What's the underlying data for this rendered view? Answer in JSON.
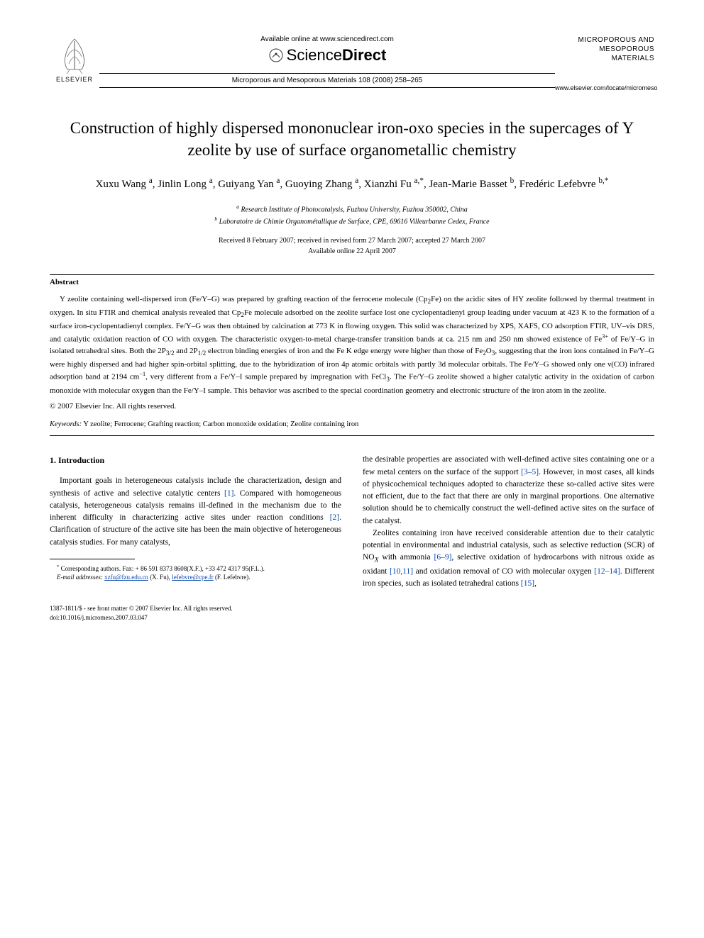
{
  "header": {
    "elsevier_label": "ELSEVIER",
    "available_online": "Available online at www.sciencedirect.com",
    "sciencedirect_prefix": "Science",
    "sciencedirect_suffix": "Direct",
    "journal_ref": "Microporous and Mesoporous Materials 108 (2008) 258–265",
    "journal_name_line1": "MICROPOROUS AND",
    "journal_name_line2": "MESOPOROUS MATERIALS",
    "journal_url": "www.elsevier.com/locate/micromeso"
  },
  "article": {
    "title": "Construction of highly dispersed mononuclear iron-oxo species in the supercages of Y zeolite by use of surface organometallic chemistry",
    "authors_html": "Xuxu Wang <sup>a</sup>, Jinlin Long <sup>a</sup>, Guiyang Yan <sup>a</sup>, Guoying Zhang <sup>a</sup>, Xianzhi Fu <sup>a,*</sup>, Jean-Marie Basset <sup>b</sup>, Fredéric Lefebvre <sup>b,*</sup>",
    "affiliation_a": "Research Institute of Photocatalysis, Fuzhou University, Fuzhou 350002, China",
    "affiliation_b": "Laboratoire de Chimie Organométallique de Surface, CPE, 69616 Villeurbanne Cedex, France",
    "dates_line1": "Received 8 February 2007; received in revised form 27 March 2007; accepted 27 March 2007",
    "dates_line2": "Available online 22 April 2007"
  },
  "abstract": {
    "heading": "Abstract",
    "text_html": "Y zeolite containing well-dispersed iron (Fe/Y–G) was prepared by grafting reaction of the ferrocene molecule (Cp<sub>2</sub>Fe) on the acidic sites of HY zeolite followed by thermal treatment in oxygen. In situ FTIR and chemical analysis revealed that Cp<sub>2</sub>Fe molecule adsorbed on the zeolite surface lost one cyclopentadienyl group leading under vacuum at 423 K to the formation of a surface iron-cyclopentadienyl complex. Fe/Y–G was then obtained by calcination at 773 K in flowing oxygen. This solid was characterized by XPS, XAFS, CO adsorption FTIR, UV–vis DRS, and catalytic oxidation reaction of CO with oxygen. The characteristic oxygen-to-metal charge-transfer transition bands at ca. 215 nm and 250 nm showed existence of Fe<sup>3+</sup> of Fe/Y–G in isolated tetrahedral sites. Both the 2P<sub>3/2</sub> and 2P<sub>1/2</sub> electron binding energies of iron and the Fe K edge energy were higher than those of Fe<sub>2</sub>O<sub>3</sub>, suggesting that the iron ions contained in Fe/Y–G were highly dispersed and had higher spin-orbital splitting, due to the hybridization of iron 4p atomic orbitals with partly 3d molecular orbitals. The Fe/Y–G showed only one ν(CO) infrared adsorption band at 2194 cm<sup>−1</sup>, very different from a Fe/Y–I sample prepared by impregnation with FeCl<sub>3</sub>. The Fe/Y–G zeolite showed a higher catalytic activity in the oxidation of carbon monoxide with molecular oxygen than the Fe/Y–I sample. This behavior was ascribed to the special coordination geometry and electronic structure of the iron atom in the zeolite.",
    "copyright": "© 2007 Elsevier Inc. All rights reserved.",
    "keywords_label": "Keywords:",
    "keywords_text": " Y zeolite; Ferrocene; Grafting reaction; Carbon monoxide oxidation; Zeolite containing iron"
  },
  "body": {
    "section_heading": "1. Introduction",
    "col1_p1_html": "Important goals in heterogeneous catalysis include the characterization, design and synthesis of active and selective catalytic centers <span class=\"ref-link\">[1]</span>. Compared with homogeneous catalysis, heterogeneous catalysis remains ill-defined in the mechanism due to the inherent difficulty in characterizing active sites under reaction conditions <span class=\"ref-link\">[2]</span>. Clarification of structure of the active site has been the main objective of heterogeneous catalysis studies. For many catalysts,",
    "col2_p1_html": "the desirable properties are associated with well-defined active sites containing one or a few metal centers on the surface of the support <span class=\"ref-link\">[3–5]</span>. However, in most cases, all kinds of physicochemical techniques adopted to characterize these so-called active sites were not efficient, due to the fact that there are only in marginal proportions. One alternative solution should be to chemically construct the well-defined active sites on the surface of the catalyst.",
    "col2_p2_html": "Zeolites containing iron have received considerable attention due to their catalytic potential in environmental and industrial catalysis, such as selective reduction (SCR) of NO<sub><i>X</i></sub> with ammonia <span class=\"ref-link\">[6–9]</span>, selective oxidation of hydrocarbons with nitrous oxide as oxidant <span class=\"ref-link\">[10,11]</span> and oxidation removal of CO with molecular oxygen <span class=\"ref-link\">[12–14]</span>. Different iron species, such as isolated tetrahedral cations <span class=\"ref-link\">[15]</span>,"
  },
  "footnotes": {
    "corresponding_html": "<sup>*</sup> Corresponding authors. Fax: + 86 591 8373 8608(X.F.), +33 472 4317 95(F.L.).",
    "email_html": "<i>E-mail addresses:</i> <span class=\"email-link\">xzfu@fzu.edu.cn</span> (X. Fu), <span class=\"email-link\">lefebvre@cpe.fr</span> (F. Lefebvre)."
  },
  "footer": {
    "left_line1": "1387-1811/$ - see front matter © 2007 Elsevier Inc. All rights reserved.",
    "left_line2": "doi:10.1016/j.micromeso.2007.03.047"
  },
  "colors": {
    "text": "#000000",
    "link": "#0645ad",
    "background": "#ffffff",
    "elsevier_orange": "#e97826"
  }
}
